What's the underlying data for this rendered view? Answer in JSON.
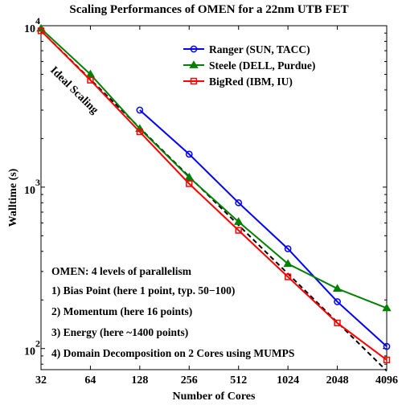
{
  "chart_data": {
    "type": "line",
    "title": "Scaling Performances of OMEN for a 22nm UTB FET",
    "xlabel": "Number of Cores",
    "ylabel": "Walltime (s)",
    "x_scale": "log2",
    "y_scale": "log10",
    "xlim": [
      32,
      4096
    ],
    "ylim": [
      74,
      10000
    ],
    "x_ticks": [
      32,
      64,
      128,
      256,
      512,
      1024,
      2048,
      4096
    ],
    "y_ticks": [
      {
        "base": "10",
        "exp": "2",
        "value": 100
      },
      {
        "base": "10",
        "exp": "3",
        "value": 1000
      },
      {
        "base": "10",
        "exp": "4",
        "value": 10000
      }
    ],
    "grid": false,
    "legend_position": "top-right",
    "series": [
      {
        "name": "Ranger (SUN, TACC)",
        "color": "#0000ff",
        "marker": "circle",
        "x": [
          128,
          256,
          512,
          1024,
          2048,
          4096
        ],
        "y": [
          3000,
          1600,
          800,
          415,
          195,
          103
        ]
      },
      {
        "name": "Steele (DELL, Purdue)",
        "color": "#008000",
        "marker": "triangle",
        "x": [
          32,
          64,
          128,
          256,
          512,
          1024,
          2048,
          4096
        ],
        "y": [
          9600,
          5000,
          2300,
          1150,
          610,
          335,
          235,
          178
        ]
      },
      {
        "name": "BigRed (IBM, IU)",
        "color": "#ff0000",
        "marker": "square",
        "x": [
          32,
          64,
          128,
          256,
          512,
          1024,
          2048,
          4096
        ],
        "y": [
          9300,
          4600,
          2200,
          1050,
          540,
          278,
          144,
          85
        ]
      }
    ],
    "reference_line": {
      "label": "Ideal Scaling",
      "color": "#000000",
      "style": "dashed",
      "x": [
        32,
        4096
      ],
      "y": [
        9300,
        72.7
      ]
    },
    "annotation": {
      "heading": "OMEN: 4 levels of parallelism",
      "lines": [
        "1) Bias Point (here 1 point, typ. 50−100)",
        "2) Momentum (here 16 points)",
        "3) Energy (here ~1400 points)",
        "4) Domain Decomposition on 2 Cores using MUMPS"
      ]
    }
  }
}
